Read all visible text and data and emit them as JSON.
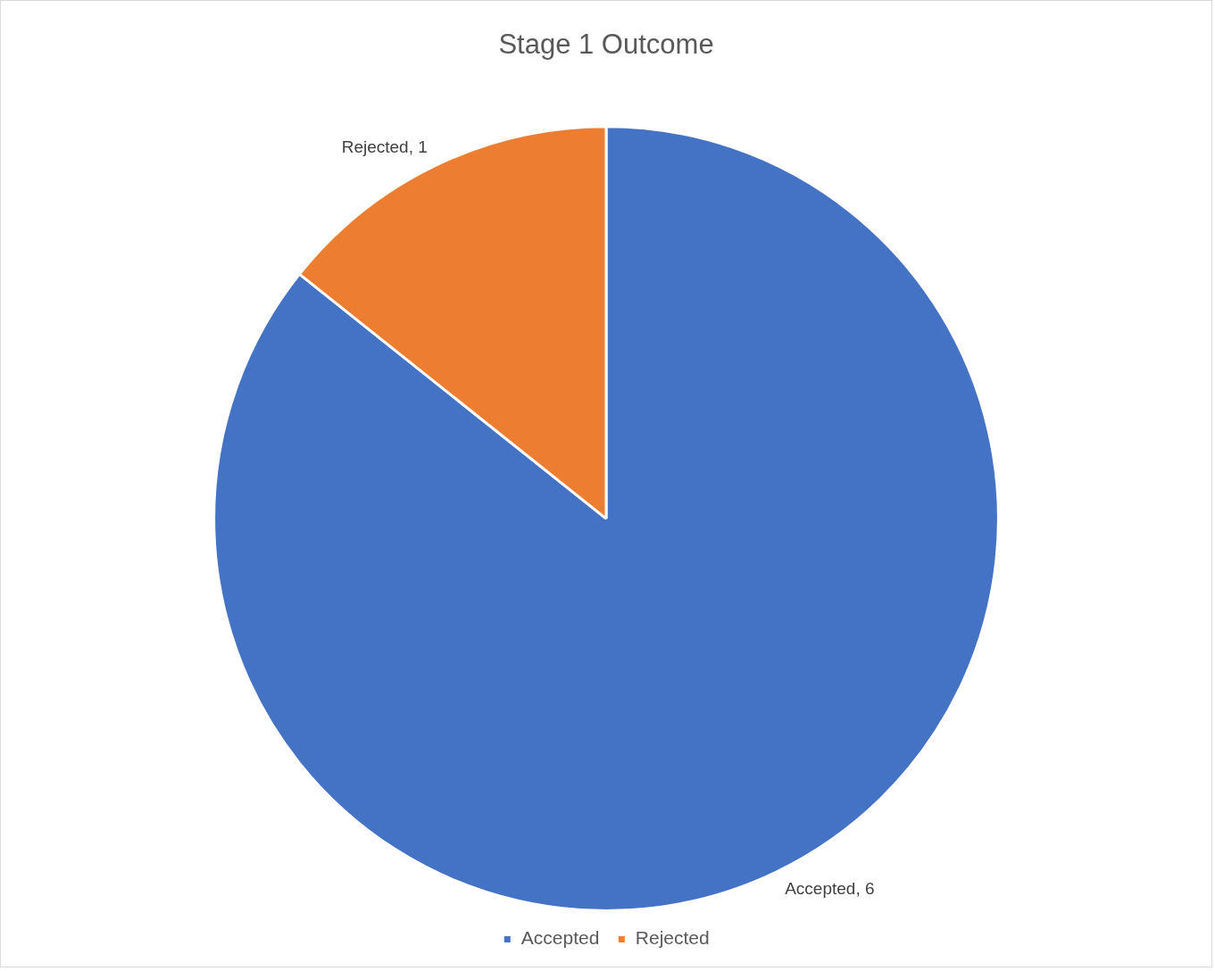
{
  "chart_data": {
    "type": "pie",
    "title": "Stage 1 Outcome",
    "categories": [
      "Accepted",
      "Rejected"
    ],
    "values": [
      6,
      1
    ],
    "colors": [
      "#4472c4",
      "#ed7d31"
    ],
    "value_labels": [
      "Accepted, 6",
      "Rejected, 1"
    ],
    "legend": "bottom"
  }
}
